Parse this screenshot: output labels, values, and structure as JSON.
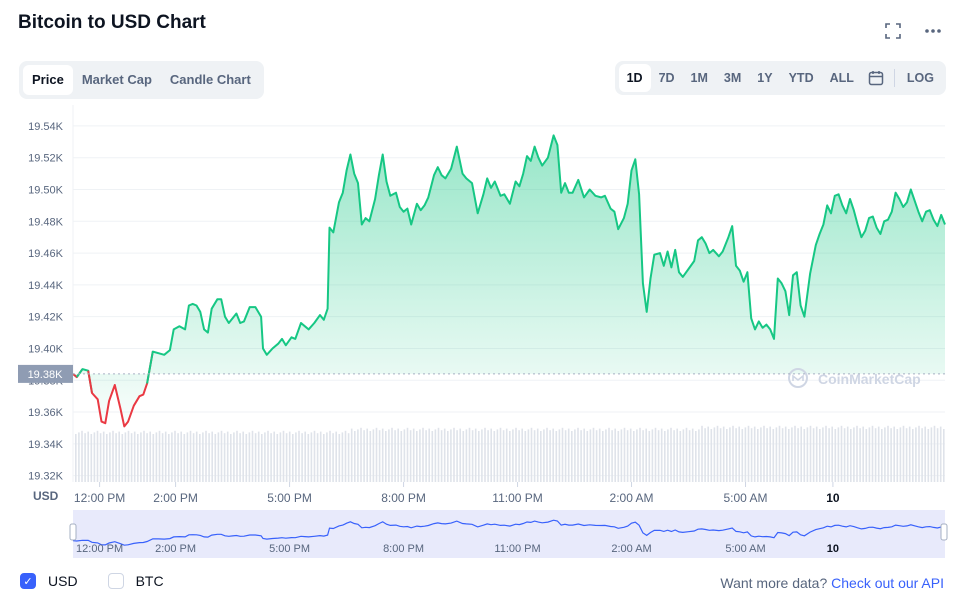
{
  "header": {
    "title": "Bitcoin to USD Chart"
  },
  "tabs": [
    {
      "label": "Price",
      "active": true
    },
    {
      "label": "Market Cap",
      "active": false
    },
    {
      "label": "Candle Chart",
      "active": false
    }
  ],
  "ranges": {
    "items": [
      {
        "label": "1D",
        "active": true
      },
      {
        "label": "7D",
        "active": false
      },
      {
        "label": "1M",
        "active": false
      },
      {
        "label": "3M",
        "active": false
      },
      {
        "label": "1Y",
        "active": false
      },
      {
        "label": "YTD",
        "active": false
      },
      {
        "label": "ALL",
        "active": false
      }
    ],
    "log_label": "LOG"
  },
  "footer": {
    "usd_label": "USD",
    "btc_label": "BTC",
    "usd_checked": true,
    "btc_checked": false,
    "api_prefix": "Want more data?",
    "api_link": "Check out our API"
  },
  "chart_data": {
    "type": "area",
    "currency_label": "USD",
    "watermark": "CoinMarketCap",
    "current_price_label": "19.38K",
    "reference_price": 19384,
    "y_ticks": [
      {
        "label": "19.54K",
        "value": 19540
      },
      {
        "label": "19.52K",
        "value": 19520
      },
      {
        "label": "19.50K",
        "value": 19500
      },
      {
        "label": "19.48K",
        "value": 19480
      },
      {
        "label": "19.46K",
        "value": 19460
      },
      {
        "label": "19.44K",
        "value": 19440
      },
      {
        "label": "19.42K",
        "value": 19420
      },
      {
        "label": "19.40K",
        "value": 19400
      },
      {
        "label": "19.38K",
        "value": 19380
      },
      {
        "label": "19.36K",
        "value": 19360
      },
      {
        "label": "19.34K",
        "value": 19340
      },
      {
        "label": "19.32K",
        "value": 19320
      }
    ],
    "ylim": [
      19316,
      19550
    ],
    "x_ticks": [
      {
        "label": "12:00 PM",
        "t": 12
      },
      {
        "label": "2:00 PM",
        "t": 14
      },
      {
        "label": "5:00 PM",
        "t": 17
      },
      {
        "label": "8:00 PM",
        "t": 20
      },
      {
        "label": "11:00 PM",
        "t": 23
      },
      {
        "label": "2:00 AM",
        "t": 26
      },
      {
        "label": "5:00 AM",
        "t": 29
      },
      {
        "label": "10",
        "t": 31.3,
        "bold": true
      }
    ],
    "xlim": [
      11.3,
      34.25
    ],
    "price_series": [
      [
        11.3,
        19384
      ],
      [
        11.4,
        19382
      ],
      [
        11.55,
        19387
      ],
      [
        11.7,
        19386
      ],
      [
        11.8,
        19372
      ],
      [
        11.95,
        19368
      ],
      [
        12.05,
        19354
      ],
      [
        12.15,
        19353
      ],
      [
        12.25,
        19367
      ],
      [
        12.4,
        19377
      ],
      [
        12.55,
        19362
      ],
      [
        12.65,
        19351
      ],
      [
        12.75,
        19354
      ],
      [
        12.9,
        19364
      ],
      [
        13.05,
        19370
      ],
      [
        13.15,
        19371
      ],
      [
        13.25,
        19378
      ],
      [
        13.4,
        19398
      ],
      [
        13.55,
        19397
      ],
      [
        13.7,
        19396
      ],
      [
        13.85,
        19399
      ],
      [
        13.95,
        19412
      ],
      [
        14.1,
        19414
      ],
      [
        14.25,
        19412
      ],
      [
        14.35,
        19427
      ],
      [
        14.45,
        19428
      ],
      [
        14.55,
        19427
      ],
      [
        14.65,
        19423
      ],
      [
        14.75,
        19412
      ],
      [
        14.85,
        19410
      ],
      [
        14.95,
        19425
      ],
      [
        15.1,
        19431
      ],
      [
        15.2,
        19431
      ],
      [
        15.3,
        19420
      ],
      [
        15.4,
        19416
      ],
      [
        15.5,
        19419
      ],
      [
        15.6,
        19422
      ],
      [
        15.7,
        19416
      ],
      [
        15.8,
        19417
      ],
      [
        15.95,
        19426
      ],
      [
        16.1,
        19426
      ],
      [
        16.25,
        19420
      ],
      [
        16.3,
        19400
      ],
      [
        16.4,
        19396
      ],
      [
        16.55,
        19400
      ],
      [
        16.7,
        19403
      ],
      [
        16.8,
        19406
      ],
      [
        16.9,
        19402
      ],
      [
        17.05,
        19407
      ],
      [
        17.15,
        19406
      ],
      [
        17.3,
        19416
      ],
      [
        17.4,
        19414
      ],
      [
        17.5,
        19412
      ],
      [
        17.65,
        19416
      ],
      [
        17.8,
        19421
      ],
      [
        17.9,
        19418
      ],
      [
        18.0,
        19425
      ],
      [
        18.05,
        19476
      ],
      [
        18.15,
        19473
      ],
      [
        18.3,
        19492
      ],
      [
        18.4,
        19498
      ],
      [
        18.45,
        19505
      ],
      [
        18.5,
        19512
      ],
      [
        18.6,
        19522
      ],
      [
        18.7,
        19510
      ],
      [
        18.8,
        19504
      ],
      [
        18.9,
        19478
      ],
      [
        19.0,
        19482
      ],
      [
        19.1,
        19480
      ],
      [
        19.25,
        19494
      ],
      [
        19.35,
        19509
      ],
      [
        19.45,
        19522
      ],
      [
        19.55,
        19505
      ],
      [
        19.65,
        19496
      ],
      [
        19.8,
        19498
      ],
      [
        19.9,
        19489
      ],
      [
        20.0,
        19486
      ],
      [
        20.1,
        19488
      ],
      [
        20.2,
        19478
      ],
      [
        20.35,
        19491
      ],
      [
        20.45,
        19487
      ],
      [
        20.55,
        19490
      ],
      [
        20.65,
        19495
      ],
      [
        20.8,
        19509
      ],
      [
        20.9,
        19514
      ],
      [
        21.0,
        19509
      ],
      [
        21.1,
        19507
      ],
      [
        21.25,
        19513
      ],
      [
        21.4,
        19527
      ],
      [
        21.55,
        19510
      ],
      [
        21.65,
        19507
      ],
      [
        21.8,
        19504
      ],
      [
        21.95,
        19485
      ],
      [
        22.1,
        19497
      ],
      [
        22.2,
        19507
      ],
      [
        22.3,
        19501
      ],
      [
        22.4,
        19505
      ],
      [
        22.55,
        19496
      ],
      [
        22.65,
        19497
      ],
      [
        22.8,
        19491
      ],
      [
        22.95,
        19505
      ],
      [
        23.05,
        19502
      ],
      [
        23.15,
        19510
      ],
      [
        23.25,
        19521
      ],
      [
        23.35,
        19518
      ],
      [
        23.45,
        19527
      ],
      [
        23.55,
        19520
      ],
      [
        23.65,
        19515
      ],
      [
        23.8,
        19520
      ],
      [
        23.95,
        19534
      ],
      [
        24.05,
        19528
      ],
      [
        24.15,
        19498
      ],
      [
        24.25,
        19504
      ],
      [
        24.35,
        19498
      ],
      [
        24.45,
        19498
      ],
      [
        24.6,
        19506
      ],
      [
        24.75,
        19495
      ],
      [
        24.9,
        19500
      ],
      [
        25.05,
        19496
      ],
      [
        25.2,
        19495
      ],
      [
        25.3,
        19496
      ],
      [
        25.45,
        19488
      ],
      [
        25.55,
        19486
      ],
      [
        25.65,
        19475
      ],
      [
        25.8,
        19482
      ],
      [
        25.9,
        19491
      ],
      [
        26.0,
        19512
      ],
      [
        26.1,
        19519
      ],
      [
        26.2,
        19497
      ],
      [
        26.3,
        19441
      ],
      [
        26.4,
        19423
      ],
      [
        26.5,
        19444
      ],
      [
        26.6,
        19459
      ],
      [
        26.75,
        19460
      ],
      [
        26.85,
        19452
      ],
      [
        26.95,
        19461
      ],
      [
        27.05,
        19451
      ],
      [
        27.15,
        19462
      ],
      [
        27.25,
        19448
      ],
      [
        27.35,
        19445
      ],
      [
        27.5,
        19450
      ],
      [
        27.65,
        19455
      ],
      [
        27.75,
        19468
      ],
      [
        27.85,
        19470
      ],
      [
        27.95,
        19466
      ],
      [
        28.05,
        19460
      ],
      [
        28.15,
        19462
      ],
      [
        28.3,
        19458
      ],
      [
        28.4,
        19461
      ],
      [
        28.55,
        19470
      ],
      [
        28.65,
        19477
      ],
      [
        28.75,
        19452
      ],
      [
        28.85,
        19449
      ],
      [
        28.95,
        19442
      ],
      [
        29.05,
        19448
      ],
      [
        29.15,
        19419
      ],
      [
        29.25,
        19412
      ],
      [
        29.35,
        19417
      ],
      [
        29.45,
        19413
      ],
      [
        29.55,
        19415
      ],
      [
        29.65,
        19412
      ],
      [
        29.75,
        19406
      ],
      [
        29.85,
        19444
      ],
      [
        29.95,
        19441
      ],
      [
        30.05,
        19436
      ],
      [
        30.15,
        19421
      ],
      [
        30.25,
        19446
      ],
      [
        30.35,
        19448
      ],
      [
        30.45,
        19427
      ],
      [
        30.55,
        19420
      ],
      [
        30.7,
        19447
      ],
      [
        30.85,
        19465
      ],
      [
        30.95,
        19472
      ],
      [
        31.05,
        19478
      ],
      [
        31.15,
        19490
      ],
      [
        31.25,
        19485
      ],
      [
        31.35,
        19496
      ],
      [
        31.45,
        19497
      ],
      [
        31.55,
        19490
      ],
      [
        31.65,
        19485
      ],
      [
        31.75,
        19494
      ],
      [
        31.85,
        19487
      ],
      [
        31.95,
        19478
      ],
      [
        32.05,
        19470
      ],
      [
        32.15,
        19474
      ],
      [
        32.25,
        19482
      ],
      [
        32.35,
        19483
      ],
      [
        32.45,
        19476
      ],
      [
        32.55,
        19472
      ],
      [
        32.65,
        19480
      ],
      [
        32.75,
        19481
      ],
      [
        32.85,
        19486
      ],
      [
        32.95,
        19498
      ],
      [
        33.05,
        19494
      ],
      [
        33.15,
        19489
      ],
      [
        33.25,
        19492
      ],
      [
        33.35,
        19500
      ],
      [
        33.45,
        19493
      ],
      [
        33.55,
        19486
      ],
      [
        33.65,
        19480
      ],
      [
        33.75,
        19486
      ],
      [
        33.85,
        19487
      ],
      [
        33.95,
        19481
      ],
      [
        34.05,
        19477
      ],
      [
        34.15,
        19484
      ],
      [
        34.25,
        19478
      ]
    ]
  }
}
